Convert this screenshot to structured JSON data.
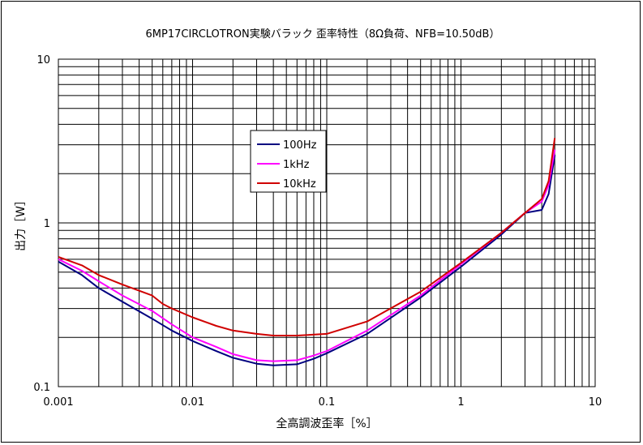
{
  "chart_data": {
    "type": "line",
    "title": "6MP17CIRCLOTRON実験バラック 歪率特性（8Ω負荷、NFB=10.50dB）",
    "xlabel": "全高調波歪率［%］",
    "ylabel": "出力［W］",
    "x_scale": "log",
    "y_scale": "log",
    "xlim": [
      0.001,
      10
    ],
    "ylim": [
      0.1,
      10
    ],
    "x_ticks": [
      "0.001",
      "0.01",
      "0.1",
      "1",
      "10"
    ],
    "y_ticks": [
      "0.1",
      "1",
      "10"
    ],
    "grid": true,
    "legend_position": "upper-center",
    "series": [
      {
        "name": "100Hz",
        "color": "#000080",
        "points": [
          [
            0.001,
            0.58
          ],
          [
            0.0015,
            0.48
          ],
          [
            0.002,
            0.4
          ],
          [
            0.003,
            0.33
          ],
          [
            0.005,
            0.26
          ],
          [
            0.007,
            0.22
          ],
          [
            0.01,
            0.19
          ],
          [
            0.015,
            0.165
          ],
          [
            0.02,
            0.15
          ],
          [
            0.03,
            0.138
          ],
          [
            0.04,
            0.135
          ],
          [
            0.06,
            0.137
          ],
          [
            0.08,
            0.148
          ],
          [
            0.1,
            0.16
          ],
          [
            0.2,
            0.21
          ],
          [
            0.5,
            0.35
          ],
          [
            1,
            0.54
          ],
          [
            2,
            0.85
          ],
          [
            3,
            1.15
          ],
          [
            4,
            1.2
          ],
          [
            4.5,
            1.5
          ],
          [
            5,
            2.6
          ]
        ]
      },
      {
        "name": "1kHz",
        "color": "#ff00ff",
        "points": [
          [
            0.001,
            0.6
          ],
          [
            0.0015,
            0.51
          ],
          [
            0.002,
            0.44
          ],
          [
            0.003,
            0.36
          ],
          [
            0.005,
            0.29
          ],
          [
            0.007,
            0.24
          ],
          [
            0.01,
            0.2
          ],
          [
            0.015,
            0.175
          ],
          [
            0.02,
            0.158
          ],
          [
            0.03,
            0.145
          ],
          [
            0.04,
            0.143
          ],
          [
            0.06,
            0.145
          ],
          [
            0.08,
            0.155
          ],
          [
            0.1,
            0.165
          ],
          [
            0.2,
            0.22
          ],
          [
            0.5,
            0.36
          ],
          [
            1,
            0.56
          ],
          [
            2,
            0.87
          ],
          [
            3,
            1.15
          ],
          [
            4,
            1.35
          ],
          [
            4.5,
            1.7
          ],
          [
            5,
            2.8
          ]
        ]
      },
      {
        "name": "10kHz",
        "color": "#d00000",
        "points": [
          [
            0.001,
            0.62
          ],
          [
            0.0015,
            0.55
          ],
          [
            0.002,
            0.48
          ],
          [
            0.003,
            0.42
          ],
          [
            0.005,
            0.36
          ],
          [
            0.006,
            0.32
          ],
          [
            0.007,
            0.3
          ],
          [
            0.01,
            0.265
          ],
          [
            0.015,
            0.235
          ],
          [
            0.02,
            0.22
          ],
          [
            0.03,
            0.21
          ],
          [
            0.04,
            0.205
          ],
          [
            0.06,
            0.205
          ],
          [
            0.1,
            0.21
          ],
          [
            0.2,
            0.25
          ],
          [
            0.5,
            0.38
          ],
          [
            1,
            0.57
          ],
          [
            2,
            0.87
          ],
          [
            3,
            1.15
          ],
          [
            4,
            1.4
          ],
          [
            4.5,
            1.8
          ],
          [
            5,
            3.3
          ]
        ]
      }
    ]
  }
}
